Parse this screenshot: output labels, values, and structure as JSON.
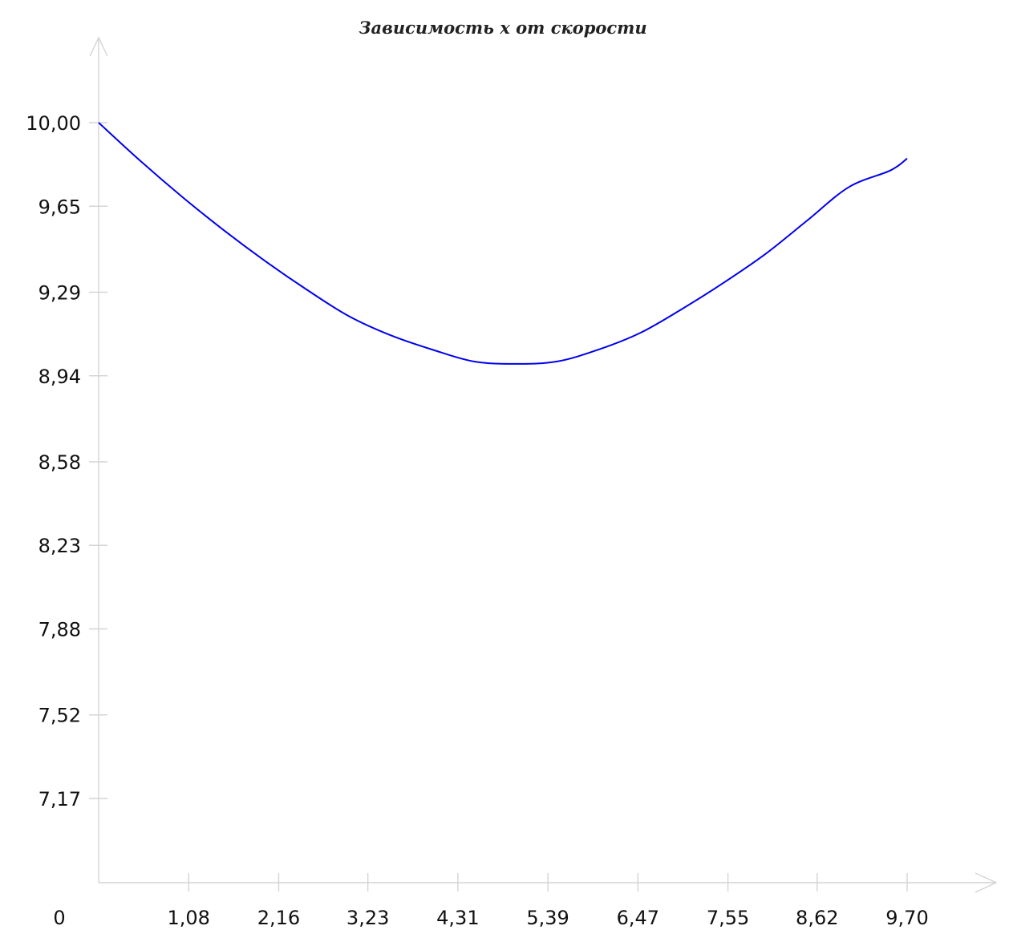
{
  "chart_data": {
    "type": "line",
    "title": "Зависимость x от скорости",
    "xlabel": "",
    "ylabel": "",
    "origin_label": "0",
    "x_ticks": [
      "1,08",
      "2,16",
      "3,23",
      "4,31",
      "5,39",
      "6,47",
      "7,55",
      "8,62",
      "9,70"
    ],
    "x_tick_values": [
      1.08,
      2.16,
      3.23,
      4.31,
      5.39,
      6.47,
      7.55,
      8.62,
      9.7
    ],
    "y_ticks": [
      "10,00",
      "9,65",
      "9,29",
      "8,94",
      "8,58",
      "8,23",
      "7,88",
      "7,52",
      "7,17"
    ],
    "y_tick_values": [
      10.0,
      9.65,
      9.29,
      8.94,
      8.58,
      8.23,
      7.88,
      7.52,
      7.17
    ],
    "xlim": [
      0,
      10.78
    ],
    "ylim": [
      6.82,
      10.35
    ],
    "grid": false,
    "legend": "none",
    "colors": {
      "line": "#0000ee",
      "axis": "#d4d4d4"
    },
    "series": [
      {
        "x": [
          0,
          0.5,
          1.0,
          1.5,
          2.0,
          2.5,
          3.0,
          3.5,
          4.0,
          4.5,
          5.0,
          5.5,
          6.0,
          6.5,
          7.0,
          7.5,
          8.0,
          8.5,
          9.0,
          9.5,
          9.7
        ],
        "y": [
          10.0,
          9.84,
          9.69,
          9.55,
          9.42,
          9.3,
          9.19,
          9.11,
          9.05,
          9.0,
          8.99,
          9.0,
          9.05,
          9.12,
          9.22,
          9.33,
          9.45,
          9.59,
          9.73,
          9.8,
          9.85
        ]
      }
    ]
  }
}
